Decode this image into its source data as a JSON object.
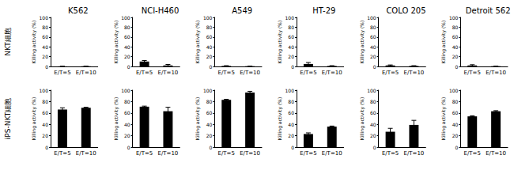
{
  "row_labels": [
    "NKT細胞",
    "iPS-NKT細胞"
  ],
  "chart_data": [
    {
      "type": "bar",
      "title": "K562",
      "y_label": "Killing activity (%)",
      "categories": [
        "E/T=5",
        "E/T=10"
      ],
      "values": [
        0.2,
        0.3
      ],
      "errors": [
        0.1,
        0.1
      ],
      "color": "#000000",
      "ylim": [
        0,
        100
      ],
      "yticks": [
        0,
        20,
        40,
        60,
        80,
        100
      ],
      "grid": false
    },
    {
      "type": "bar",
      "title": "NCI-H460",
      "y_label": "Killing activity (%)",
      "categories": [
        "E/T=5",
        "E/T=10"
      ],
      "values": [
        10,
        2
      ],
      "errors": [
        2,
        2
      ],
      "color": "#000000",
      "ylim": [
        0,
        100
      ],
      "yticks": [
        0,
        20,
        40,
        60,
        80,
        100
      ],
      "grid": false
    },
    {
      "type": "bar",
      "title": "A549",
      "y_label": "Killing activity (%)",
      "categories": [
        "E/T=5",
        "E/T=10"
      ],
      "values": [
        1,
        0.5
      ],
      "errors": [
        0.5,
        0.3
      ],
      "color": "#000000",
      "ylim": [
        0,
        100
      ],
      "yticks": [
        0,
        20,
        40,
        60,
        80,
        100
      ],
      "grid": false
    },
    {
      "type": "bar",
      "title": "HT-29",
      "y_label": "Killing activity (%)",
      "categories": [
        "E/T=5",
        "E/T=10"
      ],
      "values": [
        5,
        1
      ],
      "errors": [
        3,
        0.5
      ],
      "color": "#000000",
      "ylim": [
        0,
        100
      ],
      "yticks": [
        0,
        20,
        40,
        60,
        80,
        100
      ],
      "grid": false
    },
    {
      "type": "bar",
      "title": "COLO 205",
      "y_label": "Killing activity (%)",
      "categories": [
        "E/T=5",
        "E/T=10"
      ],
      "values": [
        2,
        1
      ],
      "errors": [
        1,
        0.5
      ],
      "color": "#000000",
      "ylim": [
        0,
        100
      ],
      "yticks": [
        0,
        20,
        40,
        60,
        80,
        100
      ],
      "grid": false
    },
    {
      "type": "bar",
      "title": "Detroit 562",
      "y_label": "Killing activity (%)",
      "categories": [
        "E/T=5",
        "E/T=10"
      ],
      "values": [
        2,
        0.5
      ],
      "errors": [
        1.5,
        0.3
      ],
      "color": "#000000",
      "ylim": [
        0,
        100
      ],
      "yticks": [
        0,
        20,
        40,
        60,
        80,
        100
      ],
      "grid": false
    },
    {
      "type": "bar",
      "y_label": "Killing activity (%)",
      "categories": [
        "E/T=5",
        "E/T=10"
      ],
      "values": [
        66,
        69
      ],
      "errors": [
        3,
        1
      ],
      "color": "#000000",
      "ylim": [
        0,
        100
      ],
      "yticks": [
        0,
        20,
        40,
        60,
        80,
        100
      ],
      "grid": false
    },
    {
      "type": "bar",
      "y_label": "Killing activity (%)",
      "categories": [
        "E/T=5",
        "E/T=10"
      ],
      "values": [
        71,
        63
      ],
      "errors": [
        1,
        7
      ],
      "color": "#000000",
      "ylim": [
        0,
        100
      ],
      "yticks": [
        0,
        20,
        40,
        60,
        80,
        100
      ],
      "grid": false
    },
    {
      "type": "bar",
      "y_label": "Killing activity (%)",
      "categories": [
        "E/T=5",
        "E/T=10"
      ],
      "values": [
        83,
        96
      ],
      "errors": [
        1,
        2
      ],
      "color": "#000000",
      "ylim": [
        0,
        100
      ],
      "yticks": [
        0,
        20,
        40,
        60,
        80,
        100
      ],
      "grid": false
    },
    {
      "type": "bar",
      "y_label": "Killing activity (%)",
      "categories": [
        "E/T=5",
        "E/T=10"
      ],
      "values": [
        23,
        36
      ],
      "errors": [
        2,
        1
      ],
      "color": "#000000",
      "ylim": [
        0,
        100
      ],
      "yticks": [
        0,
        20,
        40,
        60,
        80,
        100
      ],
      "grid": false
    },
    {
      "type": "bar",
      "y_label": "Killing activity (%)",
      "categories": [
        "E/T=5",
        "E/T=10"
      ],
      "values": [
        27,
        39
      ],
      "errors": [
        6,
        8
      ],
      "color": "#000000",
      "ylim": [
        0,
        100
      ],
      "yticks": [
        0,
        20,
        40,
        60,
        80,
        100
      ],
      "grid": false
    },
    {
      "type": "bar",
      "y_label": "Killing activity (%)",
      "categories": [
        "E/T=5",
        "E/T=10"
      ],
      "values": [
        54,
        63
      ],
      "errors": [
        1,
        1
      ],
      "color": "#000000",
      "ylim": [
        0,
        100
      ],
      "yticks": [
        0,
        20,
        40,
        60,
        80,
        100
      ],
      "grid": false
    }
  ]
}
